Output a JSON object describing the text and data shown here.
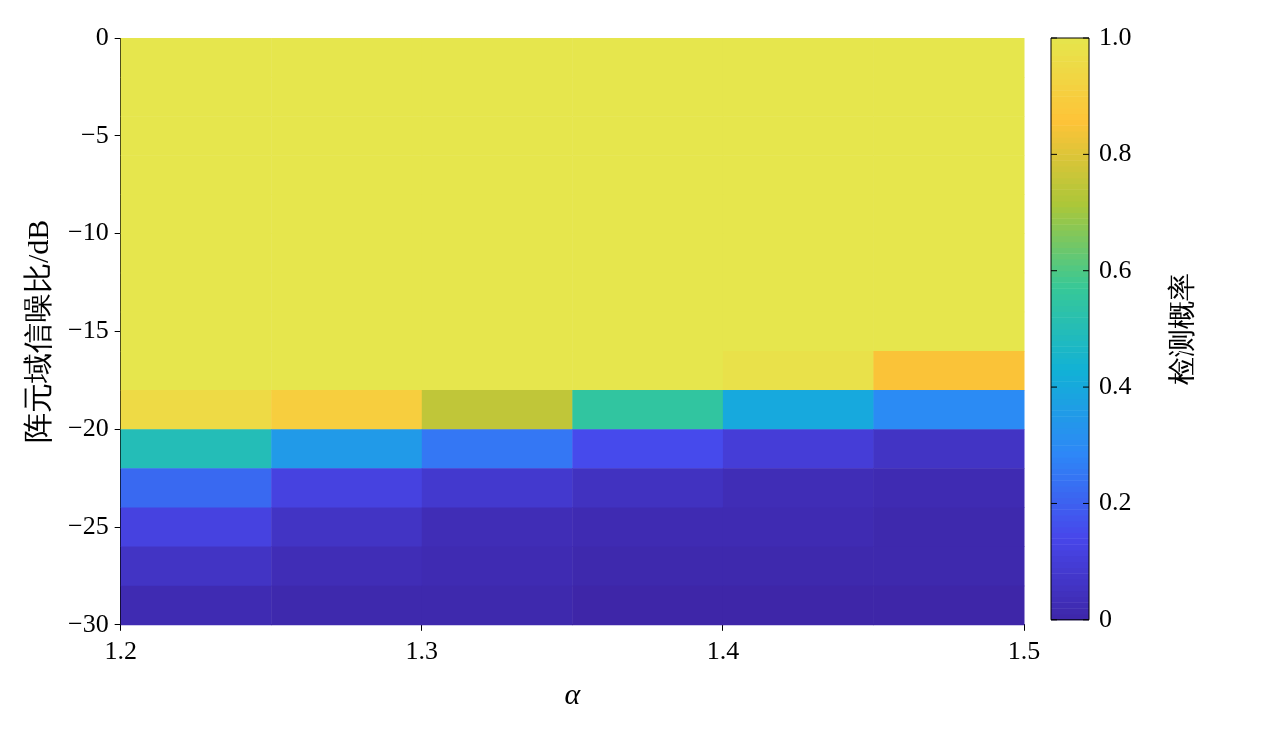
{
  "chart_data": {
    "type": "heatmap",
    "xlabel": "α",
    "ylabel": "阵元域信噪比/dB",
    "clabel": "检测概率",
    "xlim": [
      1.2,
      1.5
    ],
    "xticks": [
      1.2,
      1.3,
      1.4,
      1.5
    ],
    "ylim": [
      -30,
      0
    ],
    "yticks": [
      -30,
      -25,
      -20,
      -15,
      -10,
      -5,
      0
    ],
    "clim": [
      0,
      1
    ],
    "cticks": [
      0,
      0.2,
      0.4,
      0.6,
      0.8,
      {
        "value": 1,
        "label": "1.0"
      }
    ],
    "cells": [
      [
        1,
        1,
        1,
        1,
        1,
        1
      ],
      [
        1,
        1,
        1,
        1,
        1,
        1
      ],
      [
        1,
        1,
        1,
        1,
        1,
        1
      ],
      [
        1,
        1,
        1,
        1,
        1,
        1
      ],
      [
        1,
        1,
        1,
        1,
        1,
        1
      ],
      [
        1,
        1,
        1,
        1,
        1,
        1
      ],
      [
        1,
        1,
        1,
        1,
        1,
        1
      ],
      [
        1,
        1,
        1,
        1,
        1,
        1
      ],
      [
        1,
        1,
        1,
        1,
        0.98,
        0.85
      ],
      [
        0.95,
        0.9,
        0.75,
        0.55,
        0.4,
        0.3
      ],
      [
        0.5,
        0.35,
        0.25,
        0.15,
        0.1,
        0.06
      ],
      [
        0.22,
        0.12,
        0.08,
        0.05,
        0.03,
        0.02
      ],
      [
        0.12,
        0.06,
        0.03,
        0.02,
        0.02,
        0.01
      ],
      [
        0.06,
        0.03,
        0.02,
        0.01,
        0.01,
        0.01
      ],
      [
        0.02,
        0.01,
        0.01,
        0,
        0,
        0
      ]
    ]
  }
}
